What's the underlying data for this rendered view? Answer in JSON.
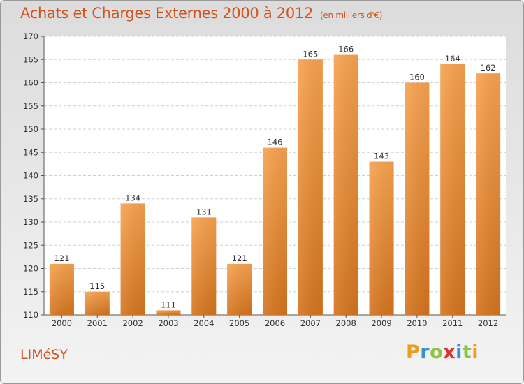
{
  "chart_data": {
    "type": "bar",
    "title": "Achats et Charges Externes 2000 à 2012",
    "subtitle": "(en milliers d'€)",
    "categories": [
      "2000",
      "2001",
      "2002",
      "2003",
      "2004",
      "2005",
      "2006",
      "2007",
      "2008",
      "2009",
      "2010",
      "2011",
      "2012"
    ],
    "values": [
      121,
      115,
      134,
      111,
      131,
      121,
      146,
      165,
      166,
      143,
      160,
      164,
      162
    ],
    "ylim": [
      110,
      170
    ],
    "yticks": [
      110,
      115,
      120,
      125,
      130,
      135,
      140,
      145,
      150,
      155,
      160,
      165,
      170
    ],
    "grid": true,
    "bar_color_top": "#f7a24f",
    "bar_color_bottom": "#d4741f"
  },
  "commune": "LIMéSY",
  "brand": {
    "letters": [
      "P",
      "r",
      "o",
      "x",
      "i",
      "t",
      "i"
    ],
    "colors": [
      "#e8a01b",
      "#3a8fd1",
      "#8cc43f",
      "#d9332b",
      "#3a8fd1",
      "#8cc43f",
      "#e8a01b"
    ]
  }
}
